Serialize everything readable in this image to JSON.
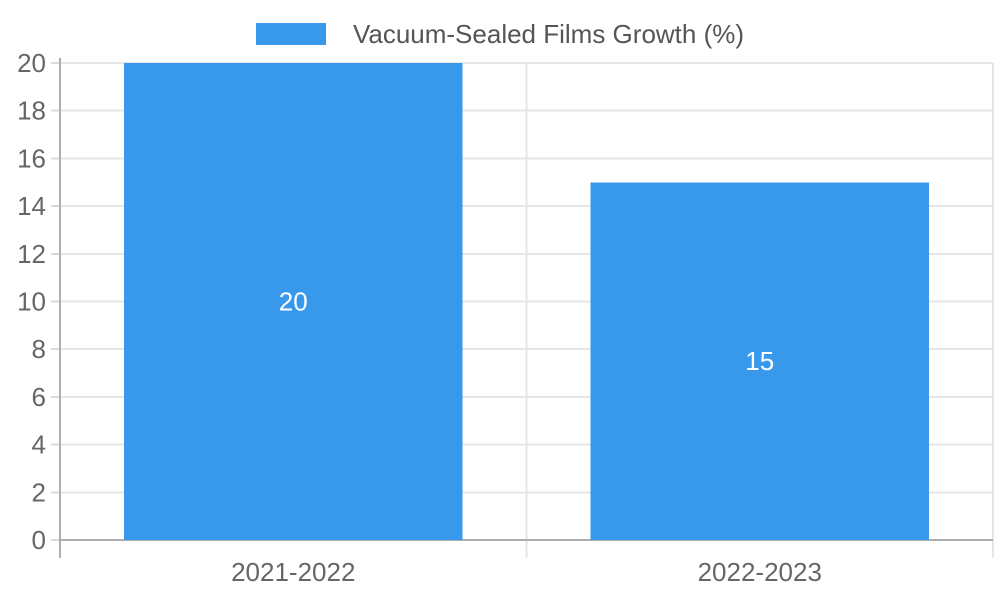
{
  "chart_data": {
    "type": "bar",
    "title": "",
    "legend": {
      "label": "Vacuum-Sealed Films Growth (%)",
      "position": "top"
    },
    "categories": [
      "2021-2022",
      "2022-2023"
    ],
    "series": [
      {
        "name": "Vacuum-Sealed Films Growth (%)",
        "values": [
          20,
          15
        ]
      }
    ],
    "value_labels": [
      "20",
      "15"
    ],
    "xlabel": "",
    "ylabel": "",
    "ylim": [
      0,
      20
    ],
    "ytick_step": 2,
    "ytick_labels": [
      "0",
      "2",
      "4",
      "6",
      "8",
      "10",
      "12",
      "14",
      "16",
      "18",
      "20"
    ],
    "grid": true,
    "colors": {
      "bar": "#3899ec",
      "grid": "#e6e6e6",
      "axis": "#adadad",
      "tick": "#d9d9d9",
      "tick_label": "#666666",
      "legend_label": "#555555",
      "value_label": "#ffffff",
      "background": "#ffffff"
    }
  }
}
